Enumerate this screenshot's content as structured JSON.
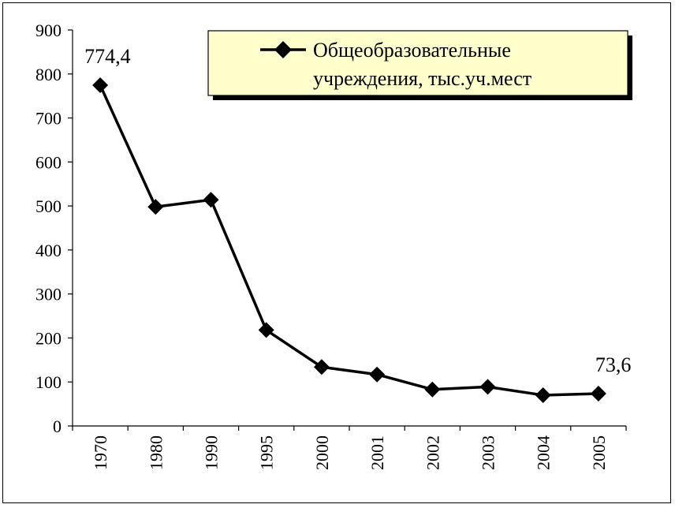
{
  "chart_data": {
    "type": "line",
    "categories": [
      "1970",
      "1980",
      "1990",
      "1995",
      "2000",
      "2001",
      "2002",
      "2003",
      "2004",
      "2005"
    ],
    "series": [
      {
        "name": "Общеобразовательные учреждения, тыс.уч.мест",
        "values": [
          774.4,
          498,
          514,
          218,
          134,
          117,
          83,
          89,
          70,
          73.6
        ],
        "color": "#000000",
        "marker": "diamond"
      }
    ],
    "legend_lines": [
      "Общеобразовательные",
      "учреждения, тыс.уч.мест"
    ],
    "data_labels": [
      {
        "index": 0,
        "text": "774,4"
      },
      {
        "index": 9,
        "text": "73,6"
      }
    ],
    "yticks": [
      "0",
      "100",
      "200",
      "300",
      "400",
      "500",
      "600",
      "700",
      "800",
      "900"
    ],
    "ylim": [
      0,
      900
    ],
    "grid": false,
    "legend_position": "top-right",
    "legend_background": "#ffffcc"
  }
}
